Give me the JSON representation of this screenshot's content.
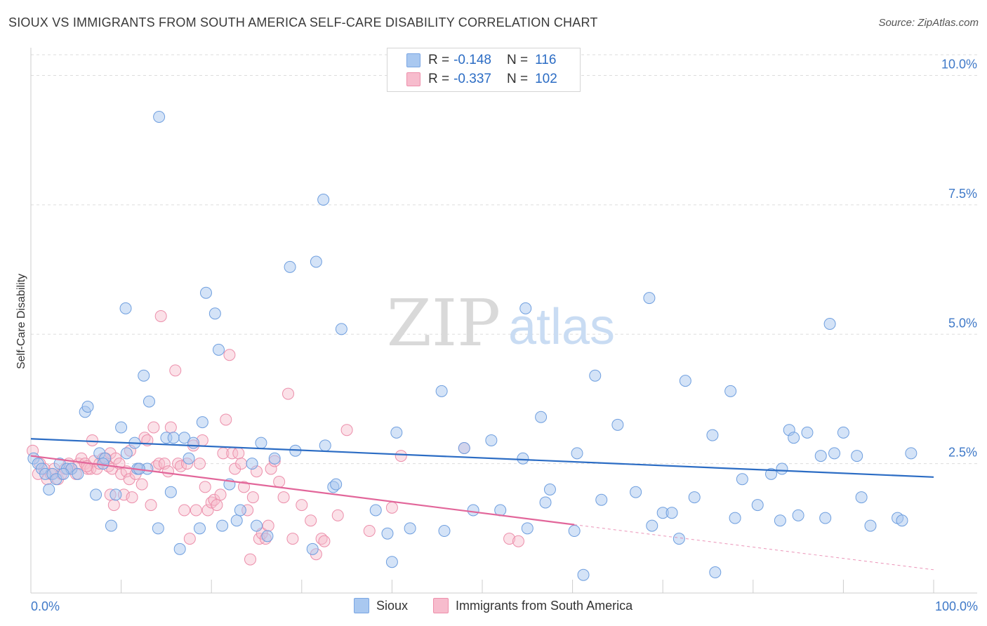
{
  "header": {
    "title": "SIOUX VS IMMIGRANTS FROM SOUTH AMERICA SELF-CARE DISABILITY CORRELATION CHART",
    "source": "Source: ZipAtlas.com"
  },
  "watermark": {
    "zip": "ZIP",
    "atlas": "atlas"
  },
  "stats": [
    {
      "r_label": "R =",
      "r_value": "-0.148",
      "n_label": "N =",
      "n_value": "116",
      "color": "#a9c8f0",
      "border": "#7aa6e3"
    },
    {
      "r_label": "R =",
      "r_value": "-0.337",
      "n_label": "N =",
      "n_value": "102",
      "color": "#f7bccd",
      "border": "#ee8fab"
    }
  ],
  "colors": {
    "sioux_fill": "#a9c8f0",
    "sioux_stroke": "#6f9fdf",
    "sioux_line": "#2b6cc4",
    "imm_fill": "#f7bccd",
    "imm_stroke": "#ec8fab",
    "imm_line": "#e2669a",
    "tick_label": "#3f79c8",
    "grid": "#dddddd"
  },
  "chart_data": {
    "type": "scatter",
    "title": "SIOUX VS IMMIGRANTS FROM SOUTH AMERICA SELF-CARE DISABILITY CORRELATION CHART",
    "xlabel": "",
    "ylabel": "Self-Care Disability",
    "xlim": [
      0,
      100
    ],
    "ylim": [
      0,
      10.4
    ],
    "x_tick_labels": [
      "0.0%",
      "100.0%"
    ],
    "y_ticks": [
      2.5,
      5.0,
      7.5,
      10.0
    ],
    "y_tick_labels": [
      "2.5%",
      "5.0%",
      "7.5%",
      "10.0%"
    ],
    "grid": true,
    "legend_position": "bottom",
    "series": [
      {
        "name": "Sioux",
        "points": [
          [
            0.3,
            2.6
          ],
          [
            0.8,
            2.5
          ],
          [
            1.2,
            2.4
          ],
          [
            1.6,
            2.3
          ],
          [
            2.0,
            2.0
          ],
          [
            2.4,
            2.3
          ],
          [
            2.8,
            2.2
          ],
          [
            3.2,
            2.5
          ],
          [
            4.0,
            2.4
          ],
          [
            4.5,
            2.4
          ],
          [
            5.2,
            2.3
          ],
          [
            6.0,
            3.5
          ],
          [
            6.3,
            3.6
          ],
          [
            7.2,
            1.9
          ],
          [
            7.6,
            2.7
          ],
          [
            8.2,
            2.6
          ],
          [
            8.9,
            1.3
          ],
          [
            9.4,
            1.9
          ],
          [
            10.0,
            3.2
          ],
          [
            10.5,
            5.5
          ],
          [
            10.6,
            2.7
          ],
          [
            11.5,
            2.9
          ],
          [
            11.8,
            2.4
          ],
          [
            12.5,
            4.2
          ],
          [
            12.9,
            2.4
          ],
          [
            13.1,
            3.7
          ],
          [
            14.1,
            1.25
          ],
          [
            14.2,
            9.2
          ],
          [
            15.0,
            3.0
          ],
          [
            15.5,
            1.95
          ],
          [
            15.8,
            3.0
          ],
          [
            16.5,
            0.85
          ],
          [
            17.0,
            3.0
          ],
          [
            17.5,
            2.6
          ],
          [
            18.0,
            2.9
          ],
          [
            18.7,
            1.25
          ],
          [
            19.0,
            3.3
          ],
          [
            19.4,
            5.8
          ],
          [
            20.4,
            5.4
          ],
          [
            20.8,
            4.7
          ],
          [
            21.2,
            1.3
          ],
          [
            22.0,
            2.1
          ],
          [
            22.8,
            1.4
          ],
          [
            23.2,
            1.6
          ],
          [
            24.5,
            2.5
          ],
          [
            25.0,
            1.3
          ],
          [
            25.5,
            2.9
          ],
          [
            26.2,
            1.1
          ],
          [
            27.0,
            2.6
          ],
          [
            28.7,
            6.3
          ],
          [
            29.3,
            2.75
          ],
          [
            31.2,
            0.85
          ],
          [
            31.6,
            6.4
          ],
          [
            32.4,
            7.6
          ],
          [
            32.6,
            2.85
          ],
          [
            33.5,
            2.05
          ],
          [
            33.8,
            2.1
          ],
          [
            34.4,
            5.1
          ],
          [
            38.2,
            1.6
          ],
          [
            39.5,
            1.15
          ],
          [
            40.0,
            0.6
          ],
          [
            40.5,
            3.1
          ],
          [
            42.0,
            1.25
          ],
          [
            45.5,
            3.9
          ],
          [
            45.8,
            1.2
          ],
          [
            48.0,
            2.8
          ],
          [
            49.0,
            1.6
          ],
          [
            51.0,
            2.95
          ],
          [
            52.0,
            1.6
          ],
          [
            54.5,
            2.6
          ],
          [
            54.8,
            5.5
          ],
          [
            55.0,
            1.25
          ],
          [
            56.5,
            3.4
          ],
          [
            57.0,
            1.75
          ],
          [
            57.5,
            2.0
          ],
          [
            60.2,
            1.2
          ],
          [
            60.5,
            2.7
          ],
          [
            61.2,
            0.35
          ],
          [
            62.5,
            4.2
          ],
          [
            63.2,
            1.8
          ],
          [
            65.0,
            3.25
          ],
          [
            67.0,
            1.95
          ],
          [
            68.5,
            5.7
          ],
          [
            68.8,
            1.3
          ],
          [
            70.0,
            1.55
          ],
          [
            71.0,
            1.55
          ],
          [
            71.8,
            1.05
          ],
          [
            72.5,
            4.1
          ],
          [
            73.5,
            1.85
          ],
          [
            75.5,
            3.05
          ],
          [
            75.8,
            0.4
          ],
          [
            77.5,
            3.9
          ],
          [
            78.0,
            1.45
          ],
          [
            78.8,
            2.2
          ],
          [
            80.5,
            1.7
          ],
          [
            82.0,
            2.3
          ],
          [
            83.0,
            1.4
          ],
          [
            83.2,
            2.4
          ],
          [
            84.0,
            3.15
          ],
          [
            84.5,
            3.0
          ],
          [
            85.0,
            1.5
          ],
          [
            86.0,
            3.1
          ],
          [
            87.5,
            2.65
          ],
          [
            88.0,
            1.45
          ],
          [
            88.5,
            5.2
          ],
          [
            89.0,
            2.7
          ],
          [
            90.0,
            3.1
          ],
          [
            91.5,
            2.65
          ],
          [
            92.0,
            1.85
          ],
          [
            93.0,
            1.3
          ],
          [
            96.0,
            1.45
          ],
          [
            96.5,
            1.4
          ],
          [
            97.5,
            2.7
          ],
          [
            12.0,
            2.4
          ],
          [
            8.0,
            2.5
          ],
          [
            3.6,
            2.3
          ]
        ],
        "trend": {
          "x": [
            0,
            100
          ],
          "y": [
            2.98,
            2.24
          ],
          "style": "solid"
        }
      },
      {
        "name": "Immigrants from South America",
        "points": [
          [
            0.2,
            2.75
          ],
          [
            0.8,
            2.3
          ],
          [
            1.0,
            2.5
          ],
          [
            1.5,
            2.4
          ],
          [
            1.8,
            2.2
          ],
          [
            2.2,
            2.3
          ],
          [
            2.6,
            2.4
          ],
          [
            3.0,
            2.2
          ],
          [
            3.4,
            2.3
          ],
          [
            3.8,
            2.4
          ],
          [
            4.2,
            2.5
          ],
          [
            4.5,
            2.4
          ],
          [
            5.0,
            2.3
          ],
          [
            5.3,
            2.5
          ],
          [
            5.6,
            2.6
          ],
          [
            6.0,
            2.5
          ],
          [
            6.3,
            2.4
          ],
          [
            6.6,
            2.4
          ],
          [
            6.8,
            2.95
          ],
          [
            7.0,
            2.55
          ],
          [
            7.3,
            2.4
          ],
          [
            7.6,
            2.5
          ],
          [
            8.0,
            2.6
          ],
          [
            8.3,
            2.6
          ],
          [
            8.6,
            2.45
          ],
          [
            8.8,
            2.7
          ],
          [
            9.0,
            2.4
          ],
          [
            9.4,
            2.6
          ],
          [
            9.8,
            2.5
          ],
          [
            10.0,
            2.3
          ],
          [
            10.3,
            1.9
          ],
          [
            10.6,
            2.35
          ],
          [
            10.9,
            2.2
          ],
          [
            11.2,
            1.85
          ],
          [
            11.6,
            2.3
          ],
          [
            12.0,
            2.4
          ],
          [
            12.3,
            2.1
          ],
          [
            12.6,
            3.0
          ],
          [
            12.9,
            2.95
          ],
          [
            13.3,
            1.7
          ],
          [
            13.6,
            3.2
          ],
          [
            13.9,
            2.45
          ],
          [
            14.2,
            2.5
          ],
          [
            14.4,
            5.35
          ],
          [
            14.8,
            2.5
          ],
          [
            15.2,
            2.35
          ],
          [
            15.5,
            3.2
          ],
          [
            16.0,
            4.3
          ],
          [
            16.3,
            2.5
          ],
          [
            16.6,
            2.45
          ],
          [
            17.0,
            1.6
          ],
          [
            17.3,
            2.5
          ],
          [
            17.6,
            1.05
          ],
          [
            18.0,
            2.85
          ],
          [
            18.3,
            1.6
          ],
          [
            18.7,
            2.5
          ],
          [
            19.0,
            2.95
          ],
          [
            19.3,
            2.05
          ],
          [
            19.6,
            1.6
          ],
          [
            20.0,
            1.75
          ],
          [
            20.3,
            1.8
          ],
          [
            20.6,
            1.7
          ],
          [
            21.0,
            1.9
          ],
          [
            21.3,
            2.7
          ],
          [
            21.6,
            3.35
          ],
          [
            22.0,
            4.6
          ],
          [
            22.3,
            2.7
          ],
          [
            22.6,
            2.4
          ],
          [
            23.0,
            2.7
          ],
          [
            23.3,
            2.5
          ],
          [
            23.6,
            2.05
          ],
          [
            24.0,
            1.6
          ],
          [
            24.3,
            0.65
          ],
          [
            24.6,
            1.85
          ],
          [
            25.0,
            2.35
          ],
          [
            25.3,
            1.05
          ],
          [
            25.6,
            1.15
          ],
          [
            26.0,
            1.05
          ],
          [
            26.3,
            1.3
          ],
          [
            26.6,
            2.4
          ],
          [
            27.0,
            2.55
          ],
          [
            27.5,
            2.15
          ],
          [
            28.0,
            1.85
          ],
          [
            28.5,
            3.85
          ],
          [
            29.0,
            1.05
          ],
          [
            30.0,
            1.7
          ],
          [
            31.0,
            1.4
          ],
          [
            31.6,
            0.75
          ],
          [
            32.2,
            1.05
          ],
          [
            32.5,
            1.0
          ],
          [
            34.0,
            1.5
          ],
          [
            35.0,
            3.15
          ],
          [
            37.5,
            1.2
          ],
          [
            40.0,
            1.65
          ],
          [
            41.0,
            2.65
          ],
          [
            48.0,
            2.8
          ],
          [
            53.0,
            1.05
          ],
          [
            54.0,
            1.0
          ],
          [
            6.2,
            2.45
          ],
          [
            8.8,
            1.9
          ],
          [
            9.2,
            1.7
          ],
          [
            11.0,
            2.75
          ]
        ],
        "trend": {
          "x": [
            0,
            60.2
          ],
          "y": [
            2.65,
            1.32
          ],
          "style": "solid",
          "extension": {
            "x": [
              60.2,
              100
            ],
            "y": [
              1.32,
              0.45
            ],
            "style": "dashed"
          }
        }
      }
    ]
  },
  "legend": [
    {
      "label": "Sioux"
    },
    {
      "label": "Immigrants from South America"
    }
  ]
}
